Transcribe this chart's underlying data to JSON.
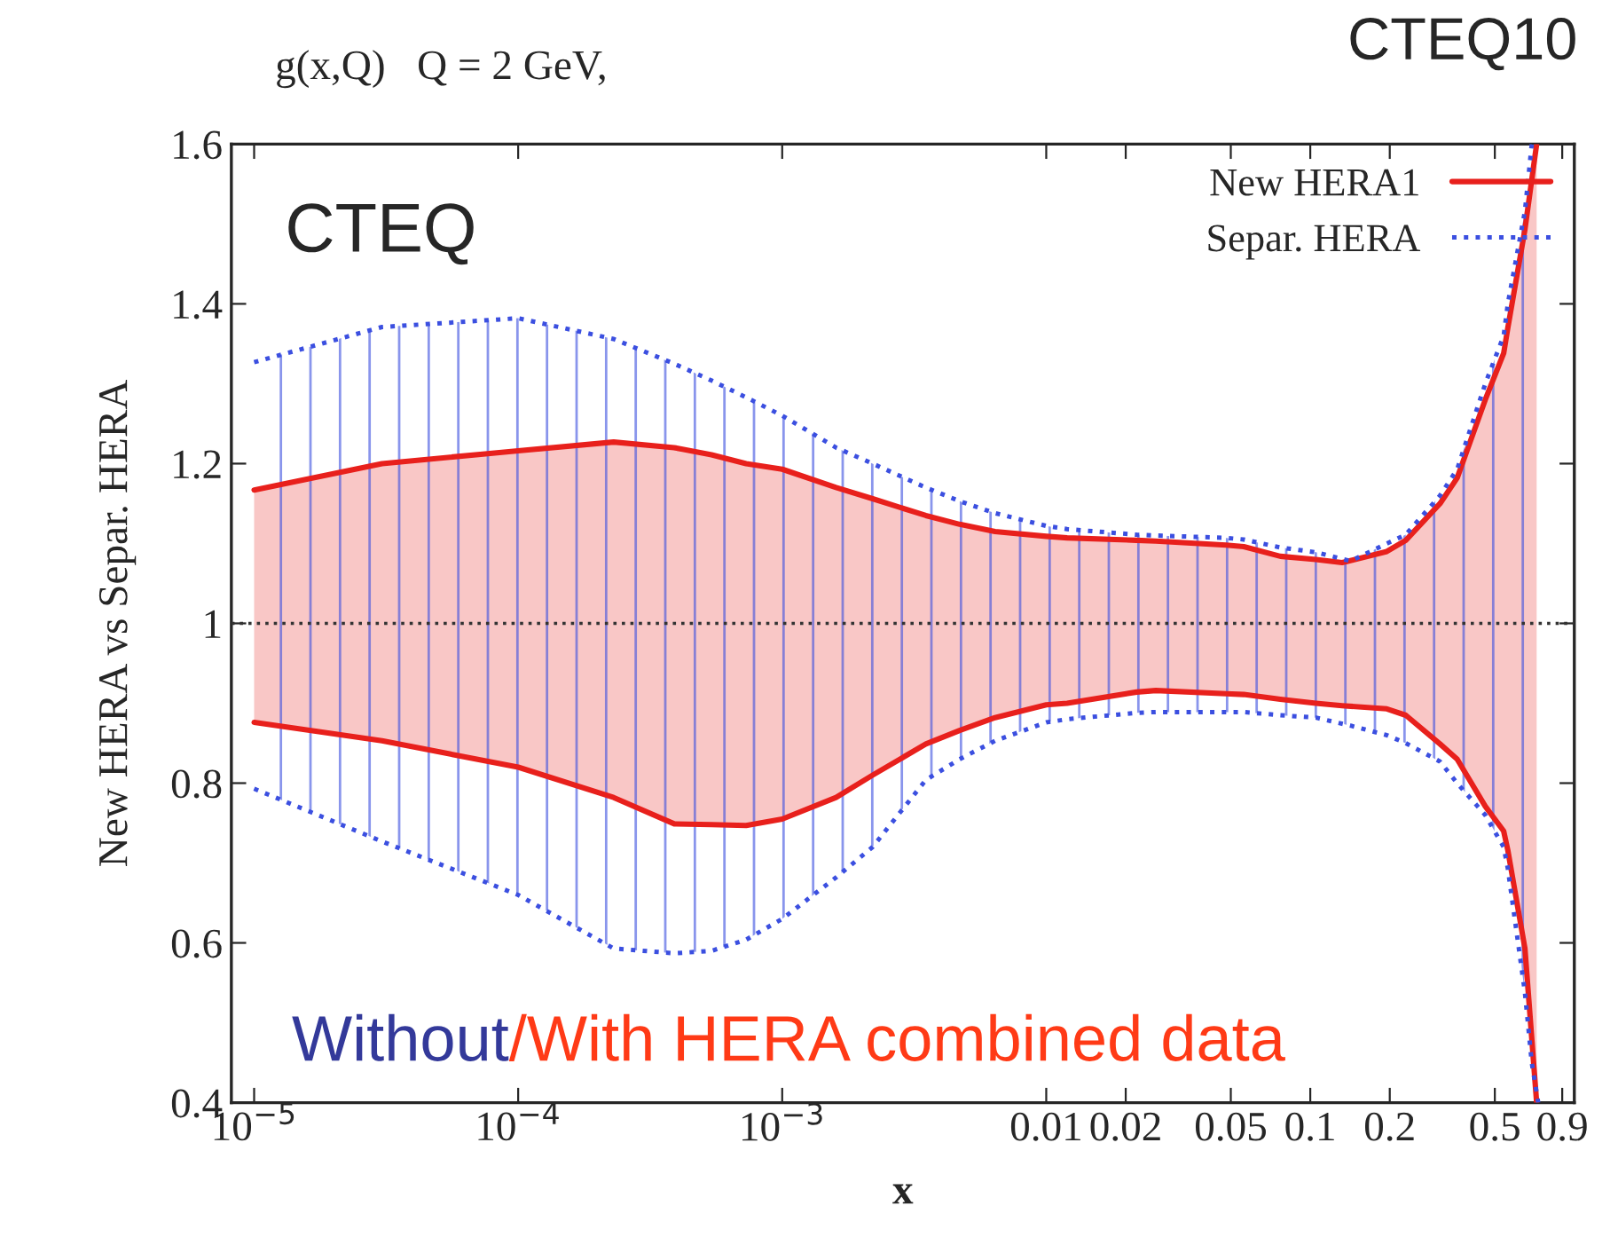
{
  "chart_data": {
    "type": "line",
    "title": "g(x,Q)   Q = 2 GeV,",
    "xlabel": "x",
    "ylabel": "New HERA vs Separ. HERA",
    "annotations": [
      "CTEQ10",
      "CTEQ",
      "Without",
      "/With HERA combined data"
    ],
    "log": "x",
    "xlim": [
      8.2e-06,
      1.0
    ],
    "ylim": [
      0.4,
      1.6
    ],
    "xticks": [
      {
        "value": 1e-05,
        "label": "10$^{−5}$"
      },
      {
        "value": 0.0001,
        "label": "10$^{−4}$"
      },
      {
        "value": 0.001,
        "label": "10$^{−3}$"
      },
      0.01,
      0.02,
      0.05,
      0.1,
      0.2,
      0.5,
      0.9
    ],
    "yticks": [
      0.4,
      0.6,
      0.8,
      1,
      1.2,
      1.4,
      1.6
    ],
    "grid": false,
    "legend": "top right",
    "ref_lines": [
      {
        "axis": "y",
        "value": 1,
        "color": "#333333",
        "line_style": "dotted"
      }
    ],
    "series": [
      {
        "name": "New HERA1",
        "color": "#e8201c",
        "line_style": "solid",
        "x": [
          1e-05,
          3.05e-05,
          0.0001,
          0.00023,
          0.00039,
          0.00054,
          0.00073,
          0.001,
          0.0016,
          0.0022,
          0.0035,
          0.0047,
          0.0064,
          0.01,
          0.012,
          0.022,
          0.026,
          0.048,
          0.056,
          0.077,
          0.105,
          0.132,
          0.195,
          0.23,
          0.31,
          0.36,
          0.46,
          0.54,
          0.56,
          0.65,
          0.72
        ],
        "values": [
          1.167,
          1.2,
          1.216,
          1.227,
          1.22,
          1.211,
          1.2,
          1.193,
          1.17,
          1.156,
          1.135,
          1.124,
          1.115,
          1.109,
          1.107,
          1.104,
          1.103,
          1.098,
          1.096,
          1.084,
          1.08,
          1.076,
          1.09,
          1.104,
          1.15,
          1.182,
          1.28,
          1.338,
          1.37,
          1.493,
          1.6
        ]
      },
      {
        "color": "#e8201c",
        "line_style": "solid",
        "x": [
          1e-05,
          3.05e-05,
          0.0001,
          0.00023,
          0.00039,
          0.00054,
          0.00073,
          0.001,
          0.0016,
          0.0022,
          0.0035,
          0.0047,
          0.0064,
          0.01,
          0.012,
          0.022,
          0.026,
          0.048,
          0.056,
          0.077,
          0.105,
          0.132,
          0.195,
          0.23,
          0.31,
          0.36,
          0.46,
          0.54,
          0.56,
          0.65,
          0.72
        ],
        "values": [
          0.876,
          0.853,
          0.82,
          0.782,
          0.749,
          0.748,
          0.747,
          0.755,
          0.782,
          0.81,
          0.849,
          0.866,
          0.882,
          0.898,
          0.9,
          0.914,
          0.916,
          0.912,
          0.911,
          0.905,
          0.9,
          0.897,
          0.893,
          0.885,
          0.849,
          0.83,
          0.771,
          0.74,
          0.716,
          0.593,
          0.4
        ]
      },
      {
        "name": "Separ. HERA",
        "color": "#3b4fe0",
        "line_style": "dotted",
        "x": [
          1e-05,
          3.05e-05,
          0.0001,
          0.00023,
          0.00039,
          0.00054,
          0.00073,
          0.001,
          0.0016,
          0.0022,
          0.0035,
          0.0047,
          0.0064,
          0.01,
          0.012,
          0.022,
          0.026,
          0.048,
          0.056,
          0.077,
          0.105,
          0.142,
          0.195,
          0.23,
          0.31,
          0.36,
          0.46,
          0.54,
          0.56,
          0.65,
          0.69,
          0.73
        ],
        "values": [
          1.327,
          1.371,
          1.382,
          1.356,
          1.325,
          1.304,
          1.283,
          1.26,
          1.22,
          1.2,
          1.17,
          1.153,
          1.138,
          1.122,
          1.118,
          1.111,
          1.11,
          1.107,
          1.105,
          1.095,
          1.089,
          1.078,
          1.1,
          1.111,
          1.16,
          1.193,
          1.3,
          1.36,
          1.4,
          1.516,
          1.6,
          1.6
        ]
      },
      {
        "color": "#3b4fe0",
        "line_style": "dotted",
        "x": [
          1e-05,
          3.05e-05,
          0.0001,
          0.00023,
          0.00039,
          0.00054,
          0.00073,
          0.001,
          0.0016,
          0.0022,
          0.0035,
          0.0047,
          0.0064,
          0.01,
          0.012,
          0.022,
          0.026,
          0.048,
          0.056,
          0.077,
          0.105,
          0.142,
          0.195,
          0.23,
          0.31,
          0.36,
          0.46,
          0.54,
          0.56,
          0.65,
          0.69,
          0.73
        ],
        "values": [
          0.793,
          0.727,
          0.66,
          0.593,
          0.587,
          0.59,
          0.604,
          0.63,
          0.682,
          0.72,
          0.804,
          0.83,
          0.853,
          0.876,
          0.88,
          0.888,
          0.889,
          0.889,
          0.889,
          0.885,
          0.882,
          0.872,
          0.86,
          0.85,
          0.827,
          0.8,
          0.76,
          0.72,
          0.693,
          0.538,
          0.45,
          0.4
        ]
      }
    ]
  }
}
